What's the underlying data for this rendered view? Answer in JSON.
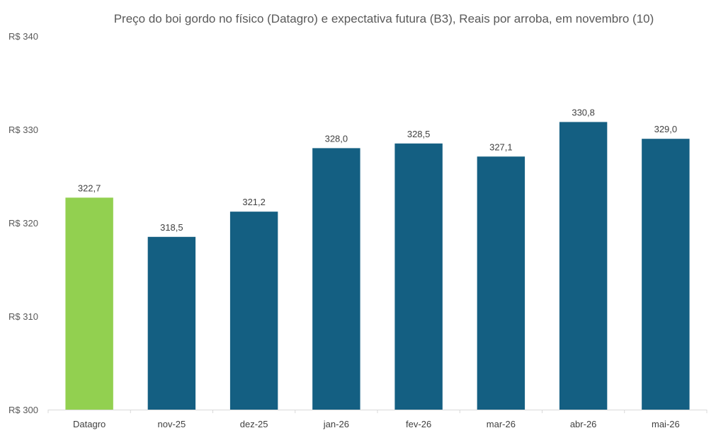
{
  "chart_data": {
    "type": "bar",
    "title": "Preço do boi gordo no físico (Datagro)  e expectativa futura (B3), Reais por arroba, em novembro (10)",
    "xlabel": "",
    "ylabel": "",
    "ylim": [
      300,
      340
    ],
    "y_ticks": [
      300,
      310,
      320,
      330,
      340
    ],
    "y_tick_labels": [
      "R$ 300",
      "R$ 310",
      "R$ 320",
      "R$ 330",
      "R$ 340"
    ],
    "grid": false,
    "categories": [
      "Datagro",
      "nov-25",
      "dez-25",
      "jan-26",
      "fev-26",
      "mar-26",
      "abr-26",
      "mai-26"
    ],
    "values": [
      322.7,
      318.5,
      321.2,
      328.0,
      328.5,
      327.1,
      330.8,
      329.0
    ],
    "value_labels": [
      "322,7",
      "318,5",
      "321,2",
      "328,0",
      "328,5",
      "327,1",
      "330,8",
      "329,0"
    ],
    "bar_colors": [
      "#92D050",
      "#145F82",
      "#145F82",
      "#145F82",
      "#145F82",
      "#145F82",
      "#145F82",
      "#145F82"
    ]
  }
}
